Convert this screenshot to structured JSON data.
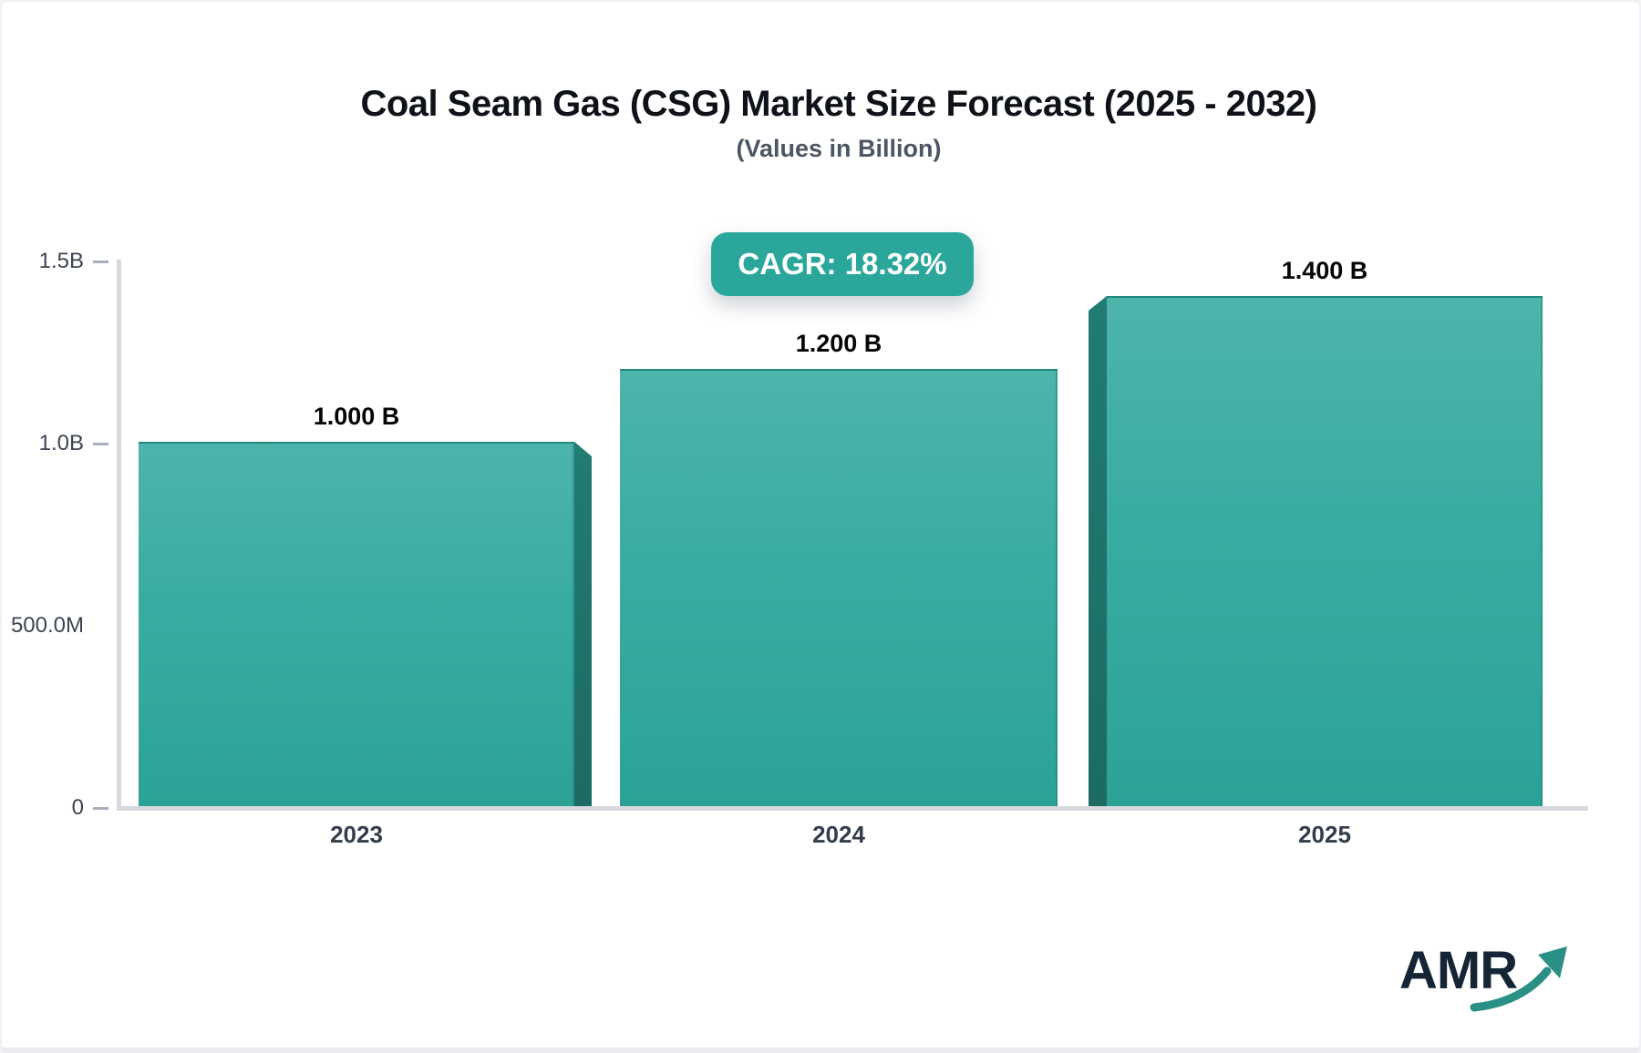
{
  "header": {
    "title": "Coal Seam Gas (CSG) Market Size Forecast (2025 - 2032)",
    "subtitle": "(Values in Billion)",
    "cagr_badge": "CAGR: 18.32%"
  },
  "chart_data": {
    "type": "bar",
    "title": "Coal Seam Gas (CSG) Market Size Forecast (2025 - 2032)",
    "subtitle": "(Values in Billion)",
    "cagr_pct": 18.32,
    "categories": [
      "2023",
      "2024",
      "2025"
    ],
    "series": [
      {
        "name": "CSG Market Size (Billion)",
        "values": [
          1.0,
          1.2,
          1.4
        ]
      }
    ],
    "value_labels": [
      "1.000 B",
      "1.200 B",
      "1.400 B"
    ],
    "ylim": [
      0,
      1.5
    ],
    "yticks": [
      0,
      0.5,
      1.0,
      1.5
    ],
    "ytick_labels": [
      "0",
      "500.0M",
      "1.0B",
      "1.5B"
    ],
    "grid": false,
    "legend_position": "none"
  },
  "colors": {
    "accent_teal": "#2aa79a",
    "bar_gradient_top": "#4db4aa",
    "bar_gradient_bottom": "#2aa396",
    "bar_side_dark": "#20756c",
    "axis_line": "#d6d9de",
    "tick": "#a9b0ba",
    "title_text": "#0f1219",
    "subtitle_text": "#4b5563",
    "axis_label_text": "#3c4553",
    "badge_text": "#ffffff",
    "logo_text_color": "#152535",
    "logo_arrow_color": "#2a8f85"
  },
  "logo": {
    "text": "AMR"
  }
}
